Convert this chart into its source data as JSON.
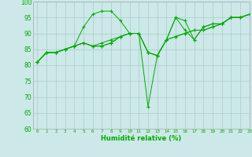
{
  "background_color": "#cce8e8",
  "grid_color": "#aacccc",
  "line_color": "#00aa00",
  "marker_color": "#00aa00",
  "xlabel": "Humidité relative (%)",
  "xlabel_color": "#00aa00",
  "ylim": [
    60,
    100
  ],
  "xlim": [
    -0.5,
    23
  ],
  "yticks": [
    60,
    65,
    70,
    75,
    80,
    85,
    90,
    95,
    100
  ],
  "xticks": [
    0,
    1,
    2,
    3,
    4,
    5,
    6,
    7,
    8,
    9,
    10,
    11,
    12,
    13,
    14,
    15,
    16,
    17,
    18,
    19,
    20,
    21,
    22,
    23
  ],
  "series": [
    [
      81,
      84,
      84,
      85,
      86,
      87,
      86,
      86,
      87,
      89,
      90,
      90,
      84,
      83,
      88,
      89,
      90,
      91,
      91,
      92,
      93,
      95,
      95,
      96
    ],
    [
      81,
      84,
      84,
      85,
      86,
      92,
      96,
      97,
      97,
      94,
      90,
      90,
      84,
      83,
      88,
      95,
      94,
      88,
      92,
      93,
      93,
      95,
      95,
      96
    ],
    [
      81,
      84,
      84,
      85,
      86,
      87,
      86,
      86,
      87,
      89,
      90,
      90,
      67,
      83,
      88,
      95,
      91,
      88,
      92,
      93,
      93,
      95,
      95,
      96
    ],
    [
      81,
      84,
      84,
      85,
      86,
      87,
      86,
      87,
      88,
      89,
      90,
      90,
      84,
      83,
      88,
      89,
      90,
      91,
      91,
      92,
      93,
      95,
      95,
      96
    ]
  ]
}
